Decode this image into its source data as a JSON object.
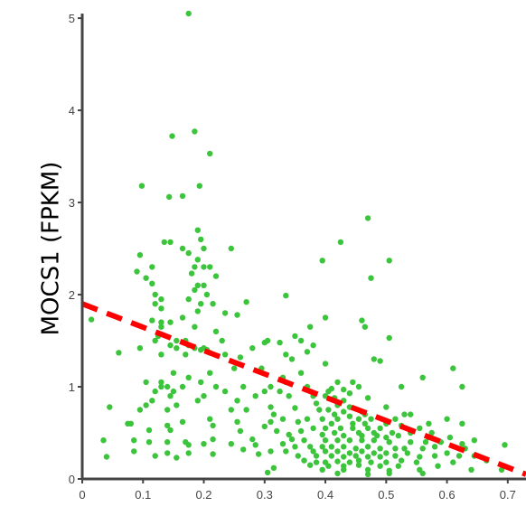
{
  "chart_data": {
    "type": "scatter",
    "title": "",
    "xlabel": "",
    "ylabel": "MOCS1 (FPKM)",
    "xlim": [
      0,
      0.73
    ],
    "ylim": [
      0,
      5.05
    ],
    "x_ticks": [
      "0",
      "0.1",
      "0.2",
      "0.3",
      "0.4",
      "0.5",
      "0.6",
      "0.7"
    ],
    "x_tick_values": [
      0,
      0.1,
      0.2,
      0.3,
      0.4,
      0.5,
      0.6,
      0.7
    ],
    "y_ticks": [
      "0",
      "1",
      "2",
      "3",
      "4",
      "5"
    ],
    "y_tick_values": [
      0,
      1,
      2,
      3,
      4,
      5
    ],
    "grid": false,
    "legend": "none",
    "point_color": "#3cc43c",
    "trend_color": "#ff0000",
    "trend_line": {
      "x": [
        0,
        0.73
      ],
      "y": [
        1.9,
        0.05
      ]
    },
    "series": [
      {
        "points": [
          [
            0.175,
            5.05
          ],
          [
            0.185,
            3.77
          ],
          [
            0.148,
            3.72
          ],
          [
            0.21,
            3.53
          ],
          [
            0.143,
            3.06
          ],
          [
            0.165,
            3.07
          ],
          [
            0.193,
            3.18
          ],
          [
            0.098,
            3.18
          ],
          [
            0.425,
            2.57
          ],
          [
            0.47,
            2.83
          ],
          [
            0.195,
            2.6
          ],
          [
            0.19,
            2.7
          ],
          [
            0.145,
            2.57
          ],
          [
            0.135,
            2.57
          ],
          [
            0.165,
            2.5
          ],
          [
            0.2,
            2.5
          ],
          [
            0.245,
            2.5
          ],
          [
            0.175,
            2.45
          ],
          [
            0.095,
            2.43
          ],
          [
            0.19,
            2.38
          ],
          [
            0.395,
            2.37
          ],
          [
            0.505,
            2.37
          ],
          [
            0.185,
            2.3
          ],
          [
            0.2,
            2.3
          ],
          [
            0.21,
            2.3
          ],
          [
            0.115,
            2.3
          ],
          [
            0.09,
            2.25
          ],
          [
            0.18,
            2.23
          ],
          [
            0.22,
            2.2
          ],
          [
            0.475,
            2.18
          ],
          [
            0.105,
            2.18
          ],
          [
            0.115,
            2.12
          ],
          [
            0.2,
            2.1
          ],
          [
            0.19,
            2.1
          ],
          [
            0.185,
            2.05
          ],
          [
            0.205,
            2.0
          ],
          [
            0.12,
            2.0
          ],
          [
            0.13,
            1.95
          ],
          [
            0.335,
            1.99
          ],
          [
            0.175,
            1.95
          ],
          [
            0.27,
            1.92
          ],
          [
            0.195,
            1.9
          ],
          [
            0.215,
            1.9
          ],
          [
            0.12,
            1.9
          ],
          [
            0.13,
            1.85
          ],
          [
            0.19,
            1.82
          ],
          [
            0.235,
            1.8
          ],
          [
            0.255,
            1.78
          ],
          [
            0.165,
            1.75
          ],
          [
            0.115,
            1.72
          ],
          [
            0.46,
            1.72
          ],
          [
            0.13,
            1.7
          ],
          [
            0.145,
            1.7
          ],
          [
            0.4,
            1.75
          ],
          [
            0.015,
            1.73
          ],
          [
            0.465,
            1.65
          ],
          [
            0.13,
            1.65
          ],
          [
            0.185,
            1.65
          ],
          [
            0.375,
            1.65
          ],
          [
            0.22,
            1.6
          ],
          [
            0.35,
            1.55
          ],
          [
            0.125,
            1.55
          ],
          [
            0.12,
            1.5
          ],
          [
            0.155,
            1.5
          ],
          [
            0.17,
            1.5
          ],
          [
            0.23,
            1.5
          ],
          [
            0.305,
            1.5
          ],
          [
            0.3,
            1.48
          ],
          [
            0.36,
            1.5
          ],
          [
            0.505,
            1.53
          ],
          [
            0.145,
            1.45
          ],
          [
            0.175,
            1.45
          ],
          [
            0.185,
            1.42
          ],
          [
            0.195,
            1.4
          ],
          [
            0.205,
            1.4
          ],
          [
            0.2,
            1.42
          ],
          [
            0.155,
            1.42
          ],
          [
            0.095,
            1.42
          ],
          [
            0.325,
            1.48
          ],
          [
            0.38,
            1.45
          ],
          [
            0.28,
            1.42
          ],
          [
            0.37,
            1.38
          ],
          [
            0.06,
            1.37
          ],
          [
            0.13,
            1.35
          ],
          [
            0.17,
            1.35
          ],
          [
            0.21,
            1.37
          ],
          [
            0.235,
            1.35
          ],
          [
            0.335,
            1.35
          ],
          [
            0.345,
            1.3
          ],
          [
            0.26,
            1.32
          ],
          [
            0.48,
            1.3
          ],
          [
            0.49,
            1.28
          ],
          [
            0.4,
            1.25
          ],
          [
            0.295,
            1.2
          ],
          [
            0.25,
            1.2
          ],
          [
            0.36,
            1.15
          ],
          [
            0.15,
            1.15
          ],
          [
            0.21,
            1.15
          ],
          [
            0.175,
            1.1
          ],
          [
            0.13,
            1.05
          ],
          [
            0.195,
            1.05
          ],
          [
            0.33,
            1.1
          ],
          [
            0.56,
            1.1
          ],
          [
            0.61,
            1.2
          ],
          [
            0.335,
            1.05
          ],
          [
            0.42,
            1.05
          ],
          [
            0.445,
            1.05
          ],
          [
            0.105,
            1.05
          ],
          [
            0.13,
            1.0
          ],
          [
            0.14,
            1.0
          ],
          [
            0.165,
            1.0
          ],
          [
            0.22,
            1.0
          ],
          [
            0.265,
            1.0
          ],
          [
            0.31,
            1.0
          ],
          [
            0.37,
            1.0
          ],
          [
            0.455,
            1.0
          ],
          [
            0.41,
            0.98
          ],
          [
            0.43,
            0.97
          ],
          [
            0.12,
            0.95
          ],
          [
            0.15,
            0.95
          ],
          [
            0.235,
            0.95
          ],
          [
            0.3,
            0.95
          ],
          [
            0.325,
            0.95
          ],
          [
            0.405,
            0.95
          ],
          [
            0.44,
            0.93
          ],
          [
            0.525,
            1.0
          ],
          [
            0.625,
            1.0
          ],
          [
            0.145,
            0.9
          ],
          [
            0.2,
            0.9
          ],
          [
            0.285,
            0.9
          ],
          [
            0.34,
            0.9
          ],
          [
            0.38,
            0.9
          ],
          [
            0.4,
            0.9
          ],
          [
            0.415,
            0.88
          ],
          [
            0.43,
            0.85
          ],
          [
            0.47,
            0.88
          ],
          [
            0.255,
            0.85
          ],
          [
            0.115,
            0.85
          ],
          [
            0.19,
            0.85
          ],
          [
            0.385,
            0.82
          ],
          [
            0.42,
            0.8
          ],
          [
            0.105,
            0.8
          ],
          [
            0.155,
            0.8
          ],
          [
            0.44,
            0.78
          ],
          [
            0.045,
            0.78
          ],
          [
            0.31,
            0.78
          ],
          [
            0.5,
            0.78
          ],
          [
            0.35,
            0.77
          ],
          [
            0.095,
            0.75
          ],
          [
            0.14,
            0.75
          ],
          [
            0.245,
            0.75
          ],
          [
            0.27,
            0.75
          ],
          [
            0.39,
            0.75
          ],
          [
            0.405,
            0.75
          ],
          [
            0.43,
            0.73
          ],
          [
            0.46,
            0.73
          ],
          [
            0.53,
            0.7
          ],
          [
            0.54,
            0.7
          ],
          [
            0.315,
            0.7
          ],
          [
            0.415,
            0.7
          ],
          [
            0.44,
            0.68
          ],
          [
            0.465,
            0.7
          ],
          [
            0.21,
            0.65
          ],
          [
            0.33,
            0.65
          ],
          [
            0.37,
            0.65
          ],
          [
            0.395,
            0.65
          ],
          [
            0.42,
            0.65
          ],
          [
            0.455,
            0.65
          ],
          [
            0.475,
            0.65
          ],
          [
            0.515,
            0.65
          ],
          [
            0.6,
            0.65
          ],
          [
            0.165,
            0.62
          ],
          [
            0.255,
            0.62
          ],
          [
            0.31,
            0.62
          ],
          [
            0.355,
            0.62
          ],
          [
            0.41,
            0.6
          ],
          [
            0.445,
            0.6
          ],
          [
            0.465,
            0.6
          ],
          [
            0.5,
            0.6
          ],
          [
            0.525,
            0.58
          ],
          [
            0.57,
            0.6
          ],
          [
            0.625,
            0.6
          ],
          [
            0.075,
            0.6
          ],
          [
            0.14,
            0.58
          ],
          [
            0.08,
            0.6
          ],
          [
            0.215,
            0.58
          ],
          [
            0.3,
            0.57
          ],
          [
            0.38,
            0.55
          ],
          [
            0.4,
            0.55
          ],
          [
            0.425,
            0.55
          ],
          [
            0.445,
            0.55
          ],
          [
            0.47,
            0.55
          ],
          [
            0.49,
            0.55
          ],
          [
            0.555,
            0.55
          ],
          [
            0.11,
            0.53
          ],
          [
            0.145,
            0.53
          ],
          [
            0.26,
            0.52
          ],
          [
            0.32,
            0.52
          ],
          [
            0.36,
            0.52
          ],
          [
            0.415,
            0.5
          ],
          [
            0.455,
            0.5
          ],
          [
            0.48,
            0.5
          ],
          [
            0.51,
            0.5
          ],
          [
            0.54,
            0.5
          ],
          [
            0.575,
            0.5
          ],
          [
            0.34,
            0.48
          ],
          [
            0.395,
            0.48
          ],
          [
            0.43,
            0.47
          ],
          [
            0.46,
            0.47
          ],
          [
            0.485,
            0.47
          ],
          [
            0.52,
            0.47
          ],
          [
            0.5,
            0.45
          ],
          [
            0.57,
            0.45
          ],
          [
            0.605,
            0.45
          ],
          [
            0.215,
            0.43
          ],
          [
            0.28,
            0.43
          ],
          [
            0.345,
            0.43
          ],
          [
            0.365,
            0.42
          ],
          [
            0.4,
            0.42
          ],
          [
            0.42,
            0.42
          ],
          [
            0.44,
            0.42
          ],
          [
            0.46,
            0.42
          ],
          [
            0.48,
            0.42
          ],
          [
            0.505,
            0.4
          ],
          [
            0.54,
            0.4
          ],
          [
            0.565,
            0.4
          ],
          [
            0.59,
            0.4
          ],
          [
            0.625,
            0.38
          ],
          [
            0.645,
            0.42
          ],
          [
            0.695,
            0.37
          ],
          [
            0.035,
            0.42
          ],
          [
            0.085,
            0.42
          ],
          [
            0.11,
            0.4
          ],
          [
            0.14,
            0.4
          ],
          [
            0.17,
            0.4
          ],
          [
            0.2,
            0.38
          ],
          [
            0.175,
            0.37
          ],
          [
            0.245,
            0.38
          ],
          [
            0.285,
            0.37
          ],
          [
            0.33,
            0.38
          ],
          [
            0.35,
            0.35
          ],
          [
            0.375,
            0.35
          ],
          [
            0.395,
            0.35
          ],
          [
            0.41,
            0.35
          ],
          [
            0.43,
            0.35
          ],
          [
            0.45,
            0.33
          ],
          [
            0.47,
            0.35
          ],
          [
            0.49,
            0.33
          ],
          [
            0.515,
            0.33
          ],
          [
            0.53,
            0.33
          ],
          [
            0.56,
            0.33
          ],
          [
            0.58,
            0.35
          ],
          [
            0.63,
            0.33
          ],
          [
            0.265,
            0.32
          ],
          [
            0.31,
            0.3
          ],
          [
            0.335,
            0.3
          ],
          [
            0.38,
            0.3
          ],
          [
            0.4,
            0.3
          ],
          [
            0.42,
            0.3
          ],
          [
            0.44,
            0.28
          ],
          [
            0.46,
            0.3
          ],
          [
            0.48,
            0.28
          ],
          [
            0.5,
            0.28
          ],
          [
            0.535,
            0.28
          ],
          [
            0.6,
            0.28
          ],
          [
            0.085,
            0.3
          ],
          [
            0.14,
            0.28
          ],
          [
            0.175,
            0.28
          ],
          [
            0.12,
            0.25
          ],
          [
            0.215,
            0.27
          ],
          [
            0.29,
            0.27
          ],
          [
            0.355,
            0.25
          ],
          [
            0.385,
            0.25
          ],
          [
            0.41,
            0.25
          ],
          [
            0.43,
            0.24
          ],
          [
            0.45,
            0.25
          ],
          [
            0.47,
            0.24
          ],
          [
            0.49,
            0.24
          ],
          [
            0.515,
            0.25
          ],
          [
            0.555,
            0.24
          ],
          [
            0.58,
            0.25
          ],
          [
            0.62,
            0.25
          ],
          [
            0.645,
            0.25
          ],
          [
            0.04,
            0.24
          ],
          [
            0.155,
            0.23
          ],
          [
            0.365,
            0.2
          ],
          [
            0.385,
            0.18
          ],
          [
            0.4,
            0.18
          ],
          [
            0.42,
            0.19
          ],
          [
            0.44,
            0.18
          ],
          [
            0.455,
            0.2
          ],
          [
            0.475,
            0.18
          ],
          [
            0.5,
            0.18
          ],
          [
            0.525,
            0.2
          ],
          [
            0.55,
            0.18
          ],
          [
            0.61,
            0.18
          ],
          [
            0.665,
            0.2
          ],
          [
            0.375,
            0.15
          ],
          [
            0.405,
            0.14
          ],
          [
            0.43,
            0.14
          ],
          [
            0.455,
            0.15
          ],
          [
            0.49,
            0.14
          ],
          [
            0.52,
            0.14
          ],
          [
            0.585,
            0.14
          ],
          [
            0.315,
            0.12
          ],
          [
            0.395,
            0.1
          ],
          [
            0.43,
            0.1
          ],
          [
            0.47,
            0.1
          ],
          [
            0.505,
            0.09
          ],
          [
            0.555,
            0.1
          ],
          [
            0.64,
            0.1
          ],
          [
            0.69,
            0.1
          ],
          [
            0.42,
            0.06
          ],
          [
            0.47,
            0.05
          ],
          [
            0.505,
            0.06
          ],
          [
            0.56,
            0.06
          ],
          [
            0.305,
            0.07
          ]
        ]
      }
    ]
  }
}
